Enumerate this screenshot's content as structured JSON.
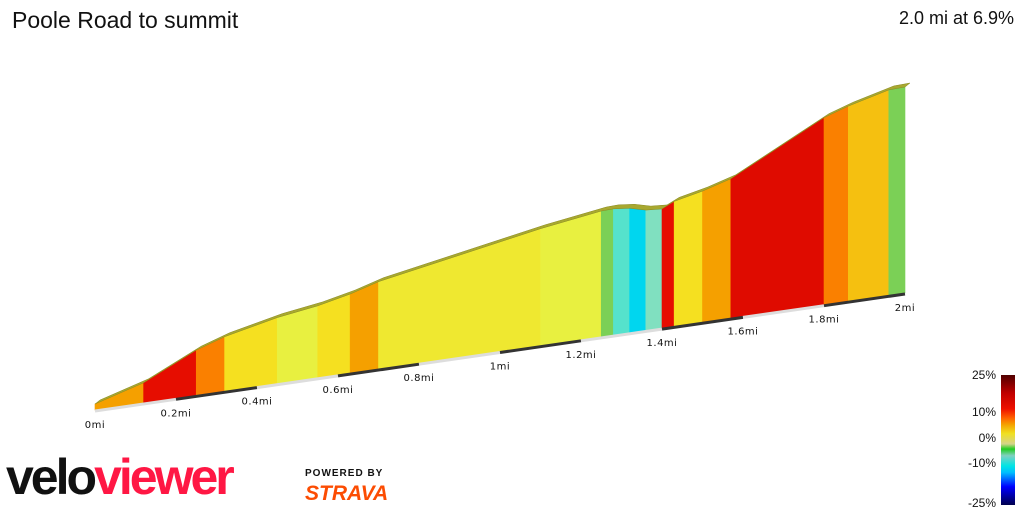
{
  "title": "Poole Road to summit",
  "summary": "2.0 mi at 6.9%",
  "chart_data": {
    "type": "area",
    "title": "Poole Road to summit",
    "xlabel": "",
    "ylabel": "",
    "x_ticks": [
      "0mi",
      "0.2mi",
      "0.4mi",
      "0.6mi",
      "0.8mi",
      "1mi",
      "1.2mi",
      "1.4mi",
      "1.6mi",
      "1.8mi",
      "2mi"
    ],
    "x_range": [
      0,
      2
    ],
    "segments": [
      {
        "start": 0,
        "end": 0.12,
        "grade": 8
      },
      {
        "start": 0.12,
        "end": 0.25,
        "grade": 13
      },
      {
        "start": 0.25,
        "end": 0.32,
        "grade": 9
      },
      {
        "start": 0.32,
        "end": 0.45,
        "grade": 6
      },
      {
        "start": 0.45,
        "end": 0.55,
        "grade": 4
      },
      {
        "start": 0.55,
        "end": 0.63,
        "grade": 6
      },
      {
        "start": 0.63,
        "end": 0.7,
        "grade": 8
      },
      {
        "start": 0.7,
        "end": 0.9,
        "grade": 5
      },
      {
        "start": 0.9,
        "end": 1.1,
        "grade": 5
      },
      {
        "start": 1.1,
        "end": 1.25,
        "grade": 4
      },
      {
        "start": 1.25,
        "end": 1.28,
        "grade": 1
      },
      {
        "start": 1.28,
        "end": 1.32,
        "grade": -3
      },
      {
        "start": 1.32,
        "end": 1.36,
        "grade": -7
      },
      {
        "start": 1.36,
        "end": 1.4,
        "grade": -2
      },
      {
        "start": 1.4,
        "end": 1.43,
        "grade": 13
      },
      {
        "start": 1.43,
        "end": 1.5,
        "grade": 6
      },
      {
        "start": 1.5,
        "end": 1.57,
        "grade": 8
      },
      {
        "start": 1.57,
        "end": 1.8,
        "grade": 14
      },
      {
        "start": 1.8,
        "end": 1.86,
        "grade": 9
      },
      {
        "start": 1.86,
        "end": 1.96,
        "grade": 7
      },
      {
        "start": 1.96,
        "end": 2.0,
        "grade": 1
      }
    ],
    "legend": {
      "labels": [
        "25%",
        "10%",
        "0%",
        "-10%",
        "-25%"
      ],
      "placement": "bottom-right"
    },
    "colors": {
      "top_edge": "#a8a830",
      "axis_dark": "#333333",
      "axis_light": "#dddddd"
    }
  },
  "logo": {
    "part1": "velo",
    "part2": "viewer",
    "powered": "POWERED BY",
    "strava": "STRAVA"
  }
}
